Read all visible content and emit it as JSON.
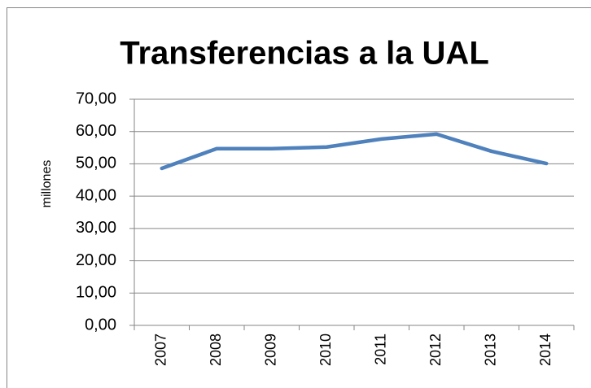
{
  "chart_data": {
    "type": "line",
    "title": "Transferencias a la UAL",
    "y_label": "millones",
    "categories": [
      "2007",
      "2008",
      "2009",
      "2010",
      "2011",
      "2012",
      "2013",
      "2014"
    ],
    "series": [
      {
        "name": null,
        "color": "#4f81bd",
        "values": [
          48.6,
          54.7,
          54.7,
          55.2,
          57.7,
          59.2,
          53.9,
          50.1
        ]
      }
    ],
    "ylim": [
      0,
      70
    ],
    "yticks": [
      {
        "value": 0,
        "label": "0,00"
      },
      {
        "value": 10,
        "label": "10,00"
      },
      {
        "value": 20,
        "label": "20,00"
      },
      {
        "value": 30,
        "label": "30,00"
      },
      {
        "value": 40,
        "label": "40,00"
      },
      {
        "value": 50,
        "label": "50,00"
      },
      {
        "value": 60,
        "label": "60,00"
      },
      {
        "value": 70,
        "label": "70,00"
      }
    ],
    "grid": true,
    "legend": false
  }
}
